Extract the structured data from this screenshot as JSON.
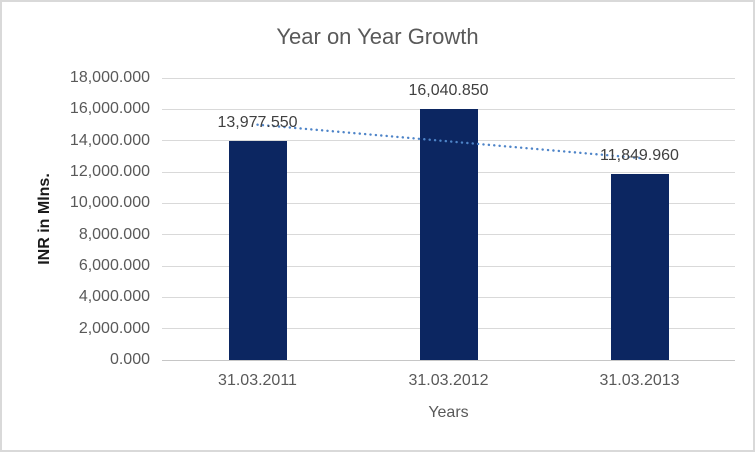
{
  "chart_data": {
    "type": "bar",
    "title": "Year on Year Growth",
    "xlabel": "Years",
    "ylabel": "INR in Mlns.",
    "categories": [
      "31.03.2011",
      "31.03.2012",
      "31.03.2013"
    ],
    "values": [
      13977.55,
      16040.85,
      11849.96
    ],
    "data_labels": [
      "13,977.550",
      "16,040.850",
      "11,849.960"
    ],
    "ylim": [
      0,
      18000
    ],
    "ytick_step": 2000,
    "ytick_labels": [
      "0.000",
      "2,000.000",
      "4,000.000",
      "6,000.000",
      "8,000.000",
      "10,000.000",
      "12,000.000",
      "14,000.000",
      "16,000.000",
      "18,000.000"
    ],
    "grid": true,
    "legend": "none",
    "bar_color": "#0c2661",
    "trendline": {
      "type": "linear",
      "style": "round-dot",
      "color": "#4e84c8"
    },
    "colors": {
      "title_text": "#595959",
      "axis_text": "#595959",
      "data_label_text": "#404040",
      "y_axis_title_text": "#1a1a1a",
      "gridline": "#d9d9d9",
      "chart_border": "#d9d9d9",
      "background": "#ffffff"
    }
  }
}
